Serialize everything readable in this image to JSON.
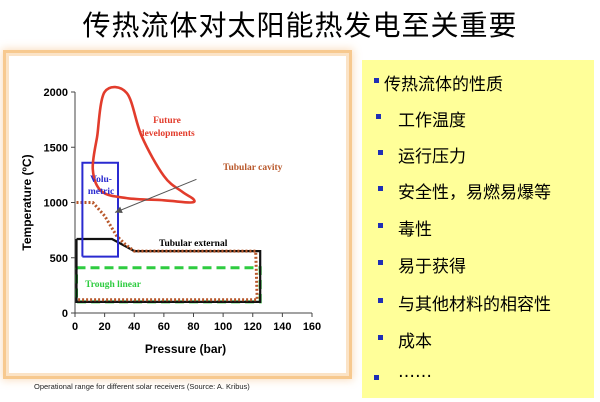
{
  "slide": {
    "title": "传热流体对太阳能热发电至关重要",
    "caption": "Operational range for different solar receivers (Source: A. Kribus)"
  },
  "sidebar": {
    "items": [
      {
        "label": "传热流体的性质"
      },
      {
        "label": "工作温度"
      },
      {
        "label": "运行压力"
      },
      {
        "label": "安全性，易燃易爆等"
      },
      {
        "label": "毒性"
      },
      {
        "label": "易于获得"
      },
      {
        "label": "与其他材料的相容性"
      },
      {
        "label": "成本"
      },
      {
        "label": "……"
      }
    ]
  },
  "chart_data": {
    "type": "area",
    "title": "",
    "xlabel": "Pressure (bar)",
    "ylabel": "Temperature (ºC)",
    "xlim": [
      0,
      160
    ],
    "ylim": [
      0,
      2000
    ],
    "xticks": [
      "0",
      "20",
      "40",
      "60",
      "80",
      "100",
      "120",
      "140",
      "160"
    ],
    "yticks": [
      "0",
      "500",
      "1000",
      "1500",
      "2000"
    ],
    "grid": false,
    "colors": {
      "future": "#e23c2c",
      "tubular_cavity": "#b8572a",
      "volumetric": "#2a2ad0",
      "tubular_external": "#111111",
      "trough": "#2ecc40",
      "arrow": "#555555"
    },
    "regions": [
      {
        "name": "Future developments",
        "label_lines": [
          "Future",
          "developments"
        ],
        "style": "closed-curve",
        "points": [
          [
            15,
            1600
          ],
          [
            20,
            2000
          ],
          [
            35,
            1990
          ],
          [
            45,
            1600
          ],
          [
            60,
            1240
          ],
          [
            72,
            1100
          ],
          [
            80,
            1030
          ],
          [
            78,
            1000
          ],
          [
            60,
            1020
          ],
          [
            35,
            1040
          ],
          [
            18,
            1100
          ],
          [
            12,
            1300
          ],
          [
            15,
            1600
          ]
        ]
      },
      {
        "name": "Tubular cavity",
        "label_lines": [
          "Tubular cavity"
        ],
        "style": "dotted-line",
        "points": [
          [
            1,
            1000
          ],
          [
            12,
            1000
          ],
          [
            20,
            880
          ],
          [
            28,
            700
          ],
          [
            34,
            620
          ],
          [
            40,
            560
          ],
          [
            122,
            560
          ],
          [
            123,
            120
          ],
          [
            1,
            120
          ]
        ]
      },
      {
        "name": "Volumetric",
        "label_lines": [
          "Volu-",
          "metric"
        ],
        "style": "rectangle",
        "points": [
          [
            5,
            510
          ],
          [
            29,
            510
          ],
          [
            29,
            1360
          ],
          [
            5,
            1360
          ],
          [
            5,
            510
          ]
        ]
      },
      {
        "name": "Tubular external",
        "label_lines": [
          "Tubular external"
        ],
        "style": "solid-line",
        "points": [
          [
            1,
            670
          ],
          [
            25,
            670
          ],
          [
            40,
            560
          ],
          [
            125,
            560
          ],
          [
            125,
            100
          ],
          [
            1,
            100
          ],
          [
            1,
            670
          ]
        ]
      },
      {
        "name": "Trough linear",
        "label_lines": [
          "Trough linear"
        ],
        "style": "dashed-rectangle",
        "points": [
          [
            1,
            410
          ],
          [
            125,
            410
          ],
          [
            125,
            100
          ],
          [
            1,
            100
          ],
          [
            1,
            410
          ]
        ]
      }
    ],
    "annotation_arrow": {
      "from": [
        82,
        1210
      ],
      "to": [
        27,
        910
      ]
    }
  }
}
